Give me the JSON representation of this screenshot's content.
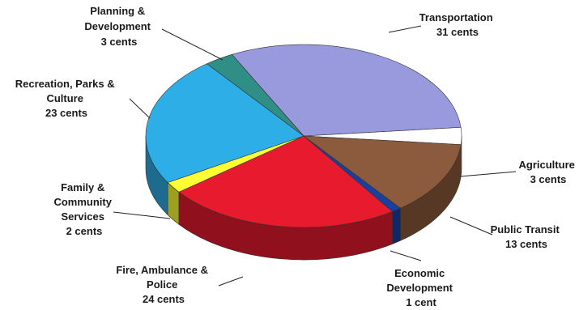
{
  "chart_data": {
    "type": "pie",
    "style": "3d",
    "unit": "cents",
    "slices": [
      {
        "label": "Transportation",
        "value": 31,
        "value_label": "31 cents",
        "color": "#9999dd"
      },
      {
        "label": "Agriculture",
        "value": 3,
        "value_label": "3 cents",
        "color": "#ffffff"
      },
      {
        "label": "Public Transit",
        "value": 13,
        "value_label": "13 cents",
        "color": "#8c5a3c"
      },
      {
        "label": "Economic Development",
        "value": 1,
        "value_label": "1 cent",
        "color": "#1a3fa0"
      },
      {
        "label": "Fire, Ambulance & Police",
        "value": 24,
        "value_label": "24 cents",
        "color": "#e81a2e"
      },
      {
        "label": "Family & Community Services",
        "value": 2,
        "value_label": "2 cents",
        "color": "#ffff33"
      },
      {
        "label": "Recreation, Parks & Culture",
        "value": 23,
        "value_label": "23 cents",
        "color": "#2eaee6"
      },
      {
        "label": "Planning & Development",
        "value": 3,
        "value_label": "3 cents",
        "color": "#2f8f86"
      }
    ]
  },
  "labels": {
    "transportation": [
      "Transportation",
      "31 cents"
    ],
    "agriculture": [
      "Agriculture",
      "3 cents"
    ],
    "public_transit": [
      "Public Transit",
      "13 cents"
    ],
    "economic_development": [
      "Economic",
      "Development",
      "1 cent"
    ],
    "fire_ambulance_police": [
      "Fire, Ambulance &",
      "Police",
      "24 cents"
    ],
    "family_community": [
      "Family &",
      "Community",
      "Services",
      "2 cents"
    ],
    "recreation_parks": [
      "Recreation, Parks &",
      "Culture",
      "23 cents"
    ],
    "planning_development": [
      "Planning &",
      "Development",
      "3 cents"
    ]
  }
}
